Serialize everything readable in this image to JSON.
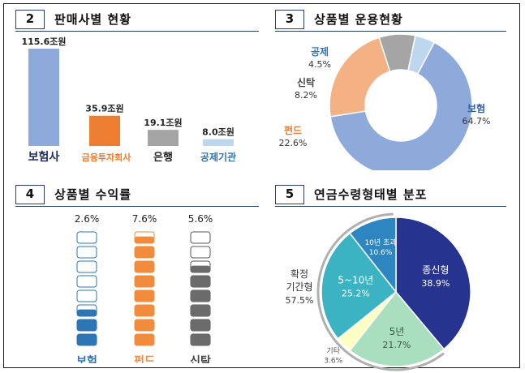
{
  "panels": {
    "p2": {
      "num": "2",
      "title": "판매사별 현황"
    },
    "p3": {
      "num": "3",
      "title": "상품별 운용현황"
    },
    "p4": {
      "num": "4",
      "title": "상품별 수익률"
    },
    "p5": {
      "num": "5",
      "title": "연금수령형태별 분포"
    }
  },
  "colors": {
    "blue_bar": "#8eaadb",
    "orange": "#ed7d31",
    "gray": "#a5a5a5",
    "light_blue": "#bdd7ee",
    "navy": "#2b3d72",
    "donut_insurance": "#8eaadb",
    "donut_fund": "#f4b183",
    "donut_trust": "#a5a5a5",
    "donut_deduction": "#bdd7ee",
    "pie_lifetime": "#26348f",
    "pie_5y": "#a9dfbf",
    "pie_other": "#ffffc4",
    "pie_5to10": "#3bb3c3",
    "pie_10plus": "#2e86c1",
    "fund_fill": "#f08c3c",
    "insurance_fill": "#2e75b6",
    "trust_fill": "#6b6b6b"
  },
  "chart_data": [
    {
      "type": "bar",
      "categories": [
        "보험사",
        "금융투자회사",
        "은행",
        "공제기관"
      ],
      "values": [
        115.6,
        35.9,
        19.1,
        8.0
      ],
      "value_labels": [
        "115.6조원",
        "35.9조원",
        "19.1조원",
        "8.0조원"
      ],
      "ylim": [
        0,
        115.6
      ]
    },
    {
      "type": "pie",
      "donut": true,
      "labels": [
        "보험",
        "펀드",
        "신탁",
        "공제"
      ],
      "values": [
        64.7,
        22.6,
        8.2,
        4.5
      ],
      "value_labels": [
        "64.7%",
        "22.6%",
        "8.2%",
        "4.5%"
      ]
    },
    {
      "type": "bar",
      "categories": [
        "보험",
        "펀드",
        "신탁"
      ],
      "values": [
        2.6,
        7.6,
        5.6
      ],
      "value_labels": [
        "2.6%",
        "7.6%",
        "5.6%"
      ],
      "ylim": [
        0,
        8
      ]
    },
    {
      "type": "pie",
      "labels": [
        "종신형",
        "5년",
        "기타",
        "5~10년",
        "10년 초과"
      ],
      "values": [
        38.9,
        21.7,
        3.6,
        25.2,
        10.6
      ],
      "value_labels": [
        "38.9%",
        "21.7%",
        "3.6%",
        "25.2%",
        "10.6%"
      ],
      "group_label": "확정\n기간형",
      "group_value_label": "57.5%"
    }
  ]
}
